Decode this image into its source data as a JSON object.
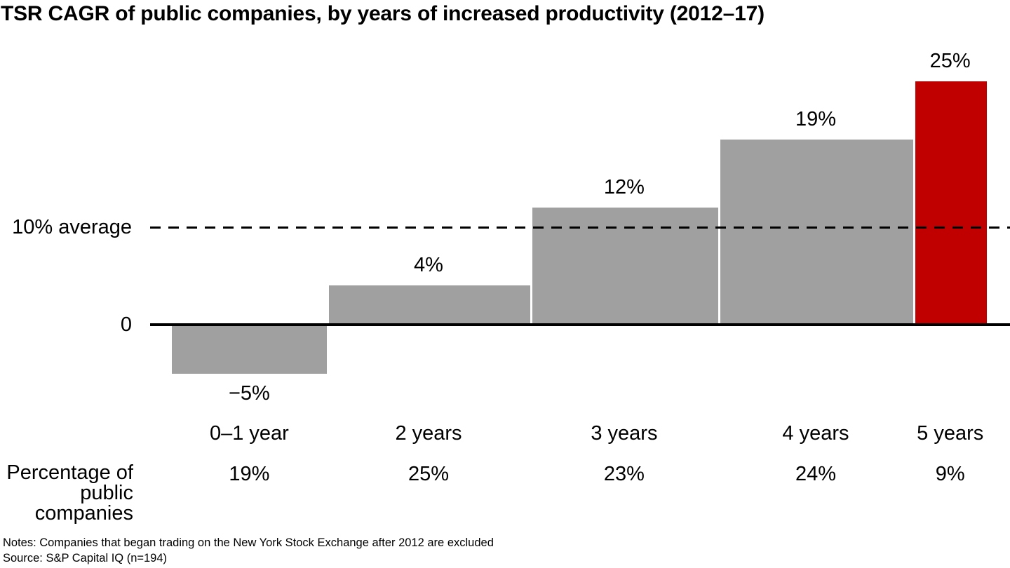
{
  "title": "TSR CAGR of public companies, by years of increased productivity (2012–17)",
  "chart_data": {
    "type": "bar",
    "subtype": "variable-width-columns",
    "title": "TSR CAGR of public companies, by years of increased productivity (2012–17)",
    "categories": [
      "0–1 year",
      "2 years",
      "3 years",
      "4 years",
      "5 years"
    ],
    "series": [
      {
        "name": "TSR CAGR (%)",
        "values": [
          -5,
          4,
          12,
          19,
          25
        ]
      },
      {
        "name": "Percentage of public companies (%)",
        "values": [
          19,
          25,
          23,
          24,
          9
        ]
      }
    ],
    "value_labels": [
      "−5%",
      "4%",
      "12%",
      "19%",
      "25%"
    ],
    "share_labels": [
      "19%",
      "25%",
      "23%",
      "24%",
      "9%"
    ],
    "bar_colors": [
      "#a0a0a0",
      "#a0a0a0",
      "#a0a0a0",
      "#a0a0a0",
      "#c00000"
    ],
    "bar_width_percent_of_total": [
      19,
      25,
      23,
      24,
      9
    ],
    "average_line": {
      "value": 10,
      "label": "10% average",
      "style": "dashed"
    },
    "zero_label": "0",
    "row_label_lines": [
      "Percentage of",
      "public companies"
    ],
    "xlabel": "",
    "ylabel": "",
    "ylim": [
      -8,
      28
    ],
    "grid": false,
    "legend": false
  },
  "row_label": {
    "line1": "Percentage of",
    "line2": "public companies"
  },
  "footer": {
    "notes": "Notes: Companies that began trading on the New York Stock Exchange after 2012 are excluded",
    "source": "Source: S&P Capital IQ (n=194)"
  },
  "colors": {
    "bar_gray": "#a0a0a0",
    "bar_red": "#c00000",
    "line_black": "#000000",
    "background": "#ffffff"
  }
}
